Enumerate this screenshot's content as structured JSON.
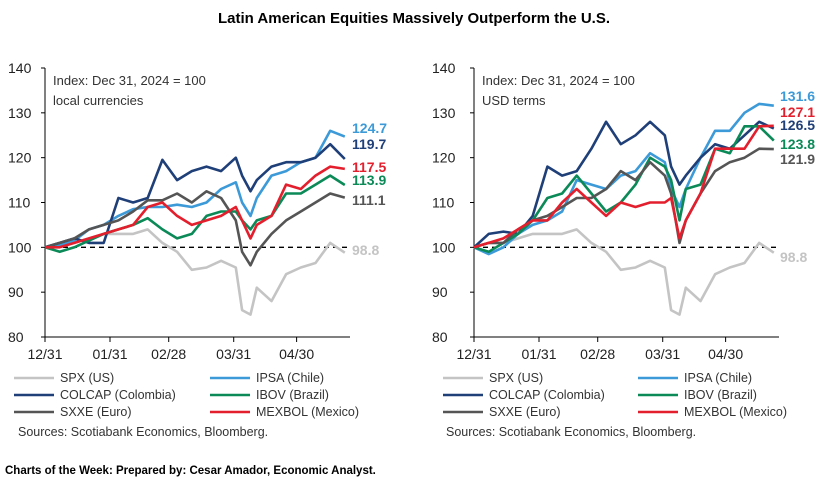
{
  "title": "Latin American Equities Massively Outperform the U.S.",
  "footer": "Charts of the Week: Prepared by: Cesar Amador, Economic Analyst.",
  "colors": {
    "SPX": "#c4c4c4",
    "IPSA": "#3d9ad8",
    "COLCAP": "#1f3f78",
    "IBOV": "#0b8a58",
    "SXXE": "#555555",
    "MEXBOL": "#e41f2d"
  },
  "chart_data": [
    {
      "type": "line",
      "annotation": [
        "Index: Dec 31, 2024 = 100",
        "local currencies"
      ],
      "ylim": [
        80,
        140
      ],
      "yticks": [
        "80",
        "90",
        "100",
        "110",
        "120",
        "130",
        "140"
      ],
      "xticks": [
        "12/31",
        "01/31",
        "02/28",
        "03/31",
        "04/30"
      ],
      "reference_line": 100,
      "x": [
        "12/31",
        "01/07",
        "01/14",
        "01/21",
        "01/28",
        "02/04",
        "02/11",
        "02/18",
        "02/25",
        "03/04",
        "03/11",
        "03/18",
        "03/25",
        "04/01",
        "04/04",
        "04/08",
        "04/11",
        "04/18",
        "04/25",
        "05/02",
        "05/09",
        "05/16",
        "05/23"
      ],
      "series": [
        {
          "name": "SPX (US)",
          "key": "SPX",
          "end_label": "98.8",
          "values": [
            100,
            101,
            101,
            102,
            103,
            103,
            103,
            104,
            101,
            99,
            95,
            95.5,
            97,
            95.5,
            86,
            85,
            91,
            88,
            94,
            95.5,
            96.5,
            101,
            98.8
          ]
        },
        {
          "name": "IPSA (Chile)",
          "key": "IPSA",
          "end_label": "124.7",
          "values": [
            100,
            100.5,
            101.5,
            104,
            105,
            107,
            108.5,
            109,
            109,
            109.5,
            109,
            110,
            113,
            114.5,
            110,
            107,
            111,
            116,
            117,
            119,
            120,
            126,
            124.7
          ]
        },
        {
          "name": "COLCAP (Colombia)",
          "key": "COLCAP",
          "end_label": "119.7",
          "values": [
            100,
            101,
            102,
            101,
            101,
            111,
            110,
            111,
            119.5,
            115,
            117,
            118,
            117,
            120,
            116,
            112.5,
            115,
            118,
            119,
            119,
            120,
            123,
            119.7
          ]
        },
        {
          "name": "IBOV (Brazil)",
          "key": "IBOV",
          "end_label": "113.9",
          "values": [
            100,
            99,
            100,
            101.5,
            103,
            104,
            105,
            106.5,
            104,
            102,
            103,
            107,
            108,
            108,
            106,
            104,
            106,
            107,
            112,
            112,
            114,
            116,
            113.9
          ]
        },
        {
          "name": "SXXE (Euro)",
          "key": "SXXE",
          "end_label": "111.1",
          "values": [
            100,
            101,
            102,
            104,
            105,
            106,
            108,
            110.5,
            110.5,
            112,
            110,
            112.5,
            111,
            106,
            99,
            96,
            99,
            103,
            106,
            108,
            110,
            112,
            111.1
          ]
        },
        {
          "name": "MEXBOL (Mexico)",
          "key": "MEXBOL",
          "end_label": "117.5",
          "values": [
            100,
            100,
            101,
            102,
            103,
            104,
            105,
            109,
            110,
            107,
            105,
            106,
            107,
            109,
            106,
            102,
            105,
            107,
            114,
            113,
            116,
            118,
            117.5
          ]
        }
      ],
      "source": "Sources: Scotiabank Economics, Bloomberg."
    },
    {
      "type": "line",
      "annotation": [
        "Index: Dec 31, 2024 = 100",
        "USD terms"
      ],
      "ylim": [
        80,
        140
      ],
      "yticks": [
        "80",
        "90",
        "100",
        "110",
        "120",
        "130",
        "140"
      ],
      "xticks": [
        "12/31",
        "01/31",
        "02/28",
        "03/31",
        "04/30"
      ],
      "reference_line": 100,
      "x": [
        "12/31",
        "01/07",
        "01/14",
        "01/21",
        "01/28",
        "02/04",
        "02/11",
        "02/18",
        "02/25",
        "03/04",
        "03/11",
        "03/18",
        "03/25",
        "04/01",
        "04/04",
        "04/08",
        "04/11",
        "04/18",
        "04/25",
        "05/02",
        "05/09",
        "05/16",
        "05/23"
      ],
      "series": [
        {
          "name": "SPX (US)",
          "key": "SPX",
          "end_label": "98.8",
          "values": [
            100,
            101,
            101,
            102,
            103,
            103,
            103,
            104,
            101,
            99,
            95,
            95.5,
            97,
            95.5,
            86,
            85,
            91,
            88,
            94,
            95.5,
            96.5,
            101,
            98.8
          ]
        },
        {
          "name": "IPSA (Chile)",
          "key": "IPSA",
          "end_label": "131.6",
          "values": [
            100,
            98.5,
            100,
            103,
            105,
            106,
            108,
            115,
            114,
            113,
            116,
            117,
            121,
            119,
            113,
            109,
            113,
            120,
            126,
            126,
            130,
            132,
            131.6
          ]
        },
        {
          "name": "COLCAP (Colombia)",
          "key": "COLCAP",
          "end_label": "126.5",
          "values": [
            100,
            103,
            103.5,
            103,
            107,
            118,
            116,
            117,
            122,
            128,
            123,
            125,
            128,
            125,
            118,
            114,
            116,
            120,
            123,
            122,
            125,
            128,
            126.5
          ]
        },
        {
          "name": "IBOV (Brazil)",
          "key": "IBOV",
          "end_label": "123.8",
          "values": [
            100,
            99,
            101,
            103,
            106,
            111,
            112,
            116,
            112,
            108,
            110,
            114,
            120,
            118,
            115,
            106,
            113,
            114,
            122,
            121,
            127,
            127,
            123.8
          ]
        },
        {
          "name": "SXXE (Euro)",
          "key": "SXXE",
          "end_label": "121.9",
          "values": [
            100,
            101,
            101,
            104,
            106,
            107,
            109,
            111,
            111,
            113,
            117,
            115,
            119,
            116,
            112,
            101,
            106,
            112,
            117,
            119,
            120,
            122,
            121.9
          ]
        },
        {
          "name": "MEXBOL (Mexico)",
          "key": "MEXBOL",
          "end_label": "127.1",
          "values": [
            100,
            101,
            102,
            104,
            106,
            106,
            110,
            113,
            110,
            107,
            110,
            109,
            110,
            110,
            111,
            102,
            106,
            112,
            122,
            122,
            122,
            127,
            127.1
          ]
        }
      ],
      "source": "Sources: Scotiabank Economics, Bloomberg."
    }
  ]
}
